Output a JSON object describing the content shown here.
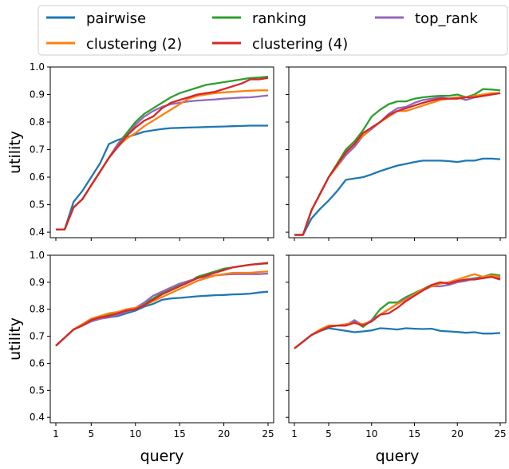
{
  "legend": {
    "items": [
      {
        "name": "pairwise",
        "color": "#1f77b4"
      },
      {
        "name": "ranking",
        "color": "#2ca02c"
      },
      {
        "name": "top_rank",
        "color": "#9467bd"
      },
      {
        "name": "clustering (2)",
        "color": "#ff7f0e"
      },
      {
        "name": "clustering (4)",
        "color": "#d62728"
      }
    ]
  },
  "chart_data": [
    {
      "type": "line",
      "xlabel": "",
      "ylabel": "utility",
      "xlim": [
        1,
        25
      ],
      "ylim": [
        0.38,
        1.0
      ],
      "xticks": [
        "1",
        "5",
        "10",
        "15",
        "20",
        "25"
      ],
      "yticks": [
        "0.4",
        "0.5",
        "0.6",
        "0.7",
        "0.8",
        "0.9",
        "1.0"
      ],
      "show_xticklabels": false,
      "show_yticklabels": true,
      "x": [
        1,
        2,
        3,
        4,
        5,
        6,
        7,
        8,
        9,
        10,
        11,
        12,
        13,
        14,
        15,
        16,
        17,
        18,
        19,
        20,
        21,
        22,
        23,
        24,
        25
      ],
      "series": [
        {
          "name": "pairwise",
          "color": "#1f77b4",
          "values": [
            0.41,
            0.41,
            0.51,
            0.55,
            0.6,
            0.65,
            0.72,
            0.735,
            0.745,
            0.755,
            0.765,
            0.77,
            0.775,
            0.778,
            0.779,
            0.78,
            0.781,
            0.782,
            0.783,
            0.784,
            0.785,
            0.786,
            0.787,
            0.787,
            0.787
          ]
        },
        {
          "name": "ranking",
          "color": "#2ca02c",
          "values": [
            0.41,
            0.41,
            0.49,
            0.52,
            0.57,
            0.62,
            0.67,
            0.72,
            0.76,
            0.8,
            0.83,
            0.85,
            0.87,
            0.89,
            0.905,
            0.915,
            0.925,
            0.935,
            0.94,
            0.945,
            0.95,
            0.955,
            0.96,
            0.962,
            0.965
          ]
        },
        {
          "name": "top_rank",
          "color": "#9467bd",
          "values": [
            0.41,
            0.41,
            0.49,
            0.52,
            0.57,
            0.62,
            0.67,
            0.72,
            0.75,
            0.79,
            0.82,
            0.84,
            0.855,
            0.865,
            0.87,
            0.875,
            0.878,
            0.88,
            0.882,
            0.885,
            0.887,
            0.889,
            0.89,
            0.893,
            0.897
          ]
        },
        {
          "name": "clustering (2)",
          "color": "#ff7f0e",
          "values": [
            0.41,
            0.41,
            0.49,
            0.52,
            0.57,
            0.62,
            0.67,
            0.71,
            0.74,
            0.76,
            0.785,
            0.805,
            0.825,
            0.845,
            0.865,
            0.885,
            0.895,
            0.9,
            0.905,
            0.908,
            0.91,
            0.912,
            0.914,
            0.915,
            0.915
          ]
        },
        {
          "name": "clustering (4)",
          "color": "#d62728",
          "values": [
            0.41,
            0.41,
            0.49,
            0.52,
            0.57,
            0.62,
            0.67,
            0.71,
            0.75,
            0.78,
            0.805,
            0.82,
            0.85,
            0.87,
            0.88,
            0.89,
            0.9,
            0.905,
            0.91,
            0.92,
            0.93,
            0.94,
            0.955,
            0.955,
            0.96
          ]
        }
      ]
    },
    {
      "type": "line",
      "xlabel": "",
      "ylabel": "",
      "xlim": [
        1,
        25
      ],
      "ylim": [
        0.38,
        1.0
      ],
      "xticks": [
        "1",
        "5",
        "10",
        "15",
        "20",
        "25"
      ],
      "yticks": [
        "0.4",
        "0.5",
        "0.6",
        "0.7",
        "0.8",
        "0.9",
        "1.0"
      ],
      "show_xticklabels": false,
      "show_yticklabels": false,
      "x": [
        1,
        2,
        3,
        4,
        5,
        6,
        7,
        8,
        9,
        10,
        11,
        12,
        13,
        14,
        15,
        16,
        17,
        18,
        19,
        20,
        21,
        22,
        23,
        24,
        25
      ],
      "series": [
        {
          "name": "pairwise",
          "color": "#1f77b4",
          "values": [
            0.39,
            0.39,
            0.45,
            0.485,
            0.515,
            0.55,
            0.59,
            0.595,
            0.6,
            0.61,
            0.622,
            0.632,
            0.642,
            0.648,
            0.655,
            0.66,
            0.66,
            0.66,
            0.658,
            0.655,
            0.66,
            0.66,
            0.667,
            0.667,
            0.665
          ]
        },
        {
          "name": "ranking",
          "color": "#2ca02c",
          "values": [
            0.39,
            0.39,
            0.48,
            0.54,
            0.6,
            0.65,
            0.7,
            0.73,
            0.77,
            0.82,
            0.845,
            0.865,
            0.875,
            0.875,
            0.885,
            0.89,
            0.893,
            0.895,
            0.895,
            0.9,
            0.89,
            0.9,
            0.92,
            0.918,
            0.915
          ]
        },
        {
          "name": "top_rank",
          "color": "#9467bd",
          "values": [
            0.39,
            0.39,
            0.48,
            0.54,
            0.6,
            0.64,
            0.68,
            0.71,
            0.75,
            0.775,
            0.8,
            0.83,
            0.85,
            0.855,
            0.87,
            0.88,
            0.885,
            0.89,
            0.885,
            0.89,
            0.88,
            0.89,
            0.895,
            0.9,
            0.905
          ]
        },
        {
          "name": "clustering (2)",
          "color": "#ff7f0e",
          "values": [
            0.39,
            0.39,
            0.48,
            0.54,
            0.6,
            0.64,
            0.69,
            0.72,
            0.75,
            0.78,
            0.8,
            0.82,
            0.84,
            0.84,
            0.85,
            0.86,
            0.87,
            0.88,
            0.885,
            0.89,
            0.89,
            0.895,
            0.9,
            0.905,
            0.905
          ]
        },
        {
          "name": "clustering (4)",
          "color": "#d62728",
          "values": [
            0.39,
            0.39,
            0.48,
            0.54,
            0.6,
            0.645,
            0.69,
            0.72,
            0.76,
            0.78,
            0.8,
            0.825,
            0.84,
            0.85,
            0.86,
            0.87,
            0.878,
            0.885,
            0.885,
            0.885,
            0.89,
            0.89,
            0.895,
            0.9,
            0.905
          ]
        }
      ]
    },
    {
      "type": "line",
      "xlabel": "query",
      "ylabel": "utility",
      "xlim": [
        1,
        25
      ],
      "ylim": [
        0.38,
        1.0
      ],
      "xticks": [
        "1",
        "5",
        "10",
        "15",
        "20",
        "25"
      ],
      "yticks": [
        "0.4",
        "0.5",
        "0.6",
        "0.7",
        "0.8",
        "0.9",
        "1.0"
      ],
      "show_xticklabels": true,
      "show_yticklabels": true,
      "x": [
        1,
        2,
        3,
        4,
        5,
        6,
        7,
        8,
        9,
        10,
        11,
        12,
        13,
        14,
        15,
        16,
        17,
        18,
        19,
        20,
        21,
        22,
        23,
        24,
        25
      ],
      "series": [
        {
          "name": "pairwise",
          "color": "#1f77b4",
          "values": [
            0.665,
            0.695,
            0.725,
            0.74,
            0.755,
            0.765,
            0.77,
            0.775,
            0.785,
            0.795,
            0.81,
            0.82,
            0.835,
            0.84,
            0.842,
            0.845,
            0.848,
            0.85,
            0.852,
            0.853,
            0.855,
            0.856,
            0.858,
            0.862,
            0.865
          ]
        },
        {
          "name": "ranking",
          "color": "#2ca02c",
          "values": [
            0.665,
            0.695,
            0.725,
            0.74,
            0.765,
            0.77,
            0.78,
            0.785,
            0.8,
            0.805,
            0.82,
            0.84,
            0.86,
            0.875,
            0.89,
            0.9,
            0.92,
            0.93,
            0.94,
            0.95,
            0.955,
            0.96,
            0.965,
            0.968,
            0.97
          ]
        },
        {
          "name": "top_rank",
          "color": "#9467bd",
          "values": [
            0.665,
            0.695,
            0.725,
            0.74,
            0.755,
            0.765,
            0.77,
            0.78,
            0.79,
            0.805,
            0.825,
            0.85,
            0.865,
            0.88,
            0.895,
            0.905,
            0.915,
            0.92,
            0.925,
            0.928,
            0.93,
            0.93,
            0.93,
            0.93,
            0.932
          ]
        },
        {
          "name": "clustering (2)",
          "color": "#ff7f0e",
          "values": [
            0.665,
            0.695,
            0.725,
            0.745,
            0.765,
            0.775,
            0.785,
            0.79,
            0.8,
            0.805,
            0.815,
            0.83,
            0.845,
            0.86,
            0.875,
            0.89,
            0.905,
            0.915,
            0.925,
            0.93,
            0.935,
            0.935,
            0.935,
            0.938,
            0.94
          ]
        },
        {
          "name": "clustering (4)",
          "color": "#d62728",
          "values": [
            0.665,
            0.695,
            0.725,
            0.74,
            0.76,
            0.77,
            0.775,
            0.785,
            0.795,
            0.8,
            0.815,
            0.835,
            0.855,
            0.87,
            0.885,
            0.9,
            0.915,
            0.925,
            0.935,
            0.945,
            0.955,
            0.96,
            0.965,
            0.968,
            0.972
          ]
        }
      ]
    },
    {
      "type": "line",
      "xlabel": "query",
      "ylabel": "",
      "xlim": [
        1,
        25
      ],
      "ylim": [
        0.38,
        1.0
      ],
      "xticks": [
        "1",
        "5",
        "10",
        "15",
        "20",
        "25"
      ],
      "yticks": [
        "0.4",
        "0.5",
        "0.6",
        "0.7",
        "0.8",
        "0.9",
        "1.0"
      ],
      "show_xticklabels": true,
      "show_yticklabels": false,
      "x": [
        1,
        2,
        3,
        4,
        5,
        6,
        7,
        8,
        9,
        10,
        11,
        12,
        13,
        14,
        15,
        16,
        17,
        18,
        19,
        20,
        21,
        22,
        23,
        24,
        25
      ],
      "series": [
        {
          "name": "pairwise",
          "color": "#1f77b4",
          "values": [
            0.655,
            0.68,
            0.705,
            0.72,
            0.73,
            0.725,
            0.72,
            0.715,
            0.718,
            0.722,
            0.73,
            0.728,
            0.725,
            0.73,
            0.728,
            0.727,
            0.728,
            0.72,
            0.718,
            0.716,
            0.713,
            0.715,
            0.71,
            0.71,
            0.712
          ]
        },
        {
          "name": "ranking",
          "color": "#2ca02c",
          "values": [
            0.655,
            0.68,
            0.705,
            0.72,
            0.735,
            0.74,
            0.74,
            0.755,
            0.735,
            0.76,
            0.8,
            0.825,
            0.825,
            0.845,
            0.86,
            0.875,
            0.89,
            0.895,
            0.9,
            0.905,
            0.91,
            0.915,
            0.92,
            0.93,
            0.925
          ]
        },
        {
          "name": "top_rank",
          "color": "#9467bd",
          "values": [
            0.655,
            0.68,
            0.705,
            0.72,
            0.735,
            0.74,
            0.74,
            0.76,
            0.74,
            0.76,
            0.78,
            0.8,
            0.82,
            0.84,
            0.855,
            0.87,
            0.885,
            0.885,
            0.89,
            0.9,
            0.905,
            0.915,
            0.915,
            0.925,
            0.915
          ]
        },
        {
          "name": "clustering (2)",
          "color": "#ff7f0e",
          "values": [
            0.655,
            0.68,
            0.705,
            0.725,
            0.74,
            0.74,
            0.745,
            0.75,
            0.745,
            0.755,
            0.78,
            0.8,
            0.82,
            0.835,
            0.855,
            0.875,
            0.885,
            0.895,
            0.9,
            0.91,
            0.92,
            0.93,
            0.92,
            0.925,
            0.92
          ]
        },
        {
          "name": "clustering (4)",
          "color": "#d62728",
          "values": [
            0.655,
            0.68,
            0.705,
            0.72,
            0.735,
            0.74,
            0.74,
            0.75,
            0.74,
            0.755,
            0.78,
            0.785,
            0.805,
            0.83,
            0.85,
            0.87,
            0.89,
            0.9,
            0.895,
            0.905,
            0.91,
            0.91,
            0.915,
            0.92,
            0.91
          ]
        }
      ]
    }
  ]
}
